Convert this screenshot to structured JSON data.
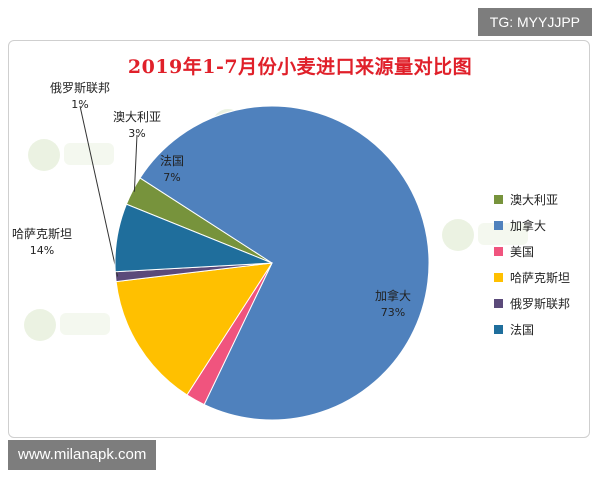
{
  "watermark_top": "TG: MYYJJPP",
  "watermark_bottom": "www.milanapk.com",
  "chart_data": {
    "type": "pie",
    "title": "2019年1-7月份小麦进口来源量对比图",
    "unit": "%",
    "slices": [
      {
        "name": "澳大利亚",
        "value": 3,
        "label": "3%",
        "color": "#77933c"
      },
      {
        "name": "加拿大",
        "value": 73,
        "label": "73%",
        "color": "#4f81bd"
      },
      {
        "name": "美国",
        "value": 2,
        "label": "",
        "color": "#f0547e"
      },
      {
        "name": "哈萨克斯坦",
        "value": 14,
        "label": "14%",
        "color": "#ffc000"
      },
      {
        "name": "俄罗斯联邦",
        "value": 1,
        "label": "1%",
        "color": "#5b4a7a"
      },
      {
        "name": "法国",
        "value": 7,
        "label": "7%",
        "color": "#1f6e9c"
      }
    ],
    "legend_position": "right",
    "legend_order": [
      "澳大利亚",
      "加拿大",
      "美国",
      "哈萨克斯坦",
      "俄罗斯联邦",
      "法国"
    ]
  }
}
